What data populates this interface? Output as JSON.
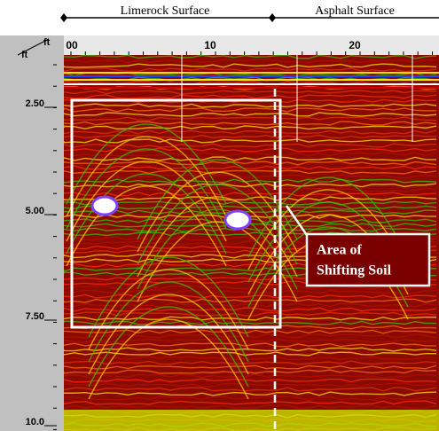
{
  "header": {
    "sections": [
      "Limerock Surface",
      "Asphalt Surface"
    ]
  },
  "axes": {
    "corner": [
      "ft",
      "ft"
    ],
    "distance_ticks": [
      "00",
      "10",
      "20"
    ],
    "depth_ticks": [
      "2.50",
      "5.00",
      "7.50",
      "10.0"
    ]
  },
  "annotation": {
    "lines": [
      "Area of",
      "Shifting Soil"
    ]
  }
}
